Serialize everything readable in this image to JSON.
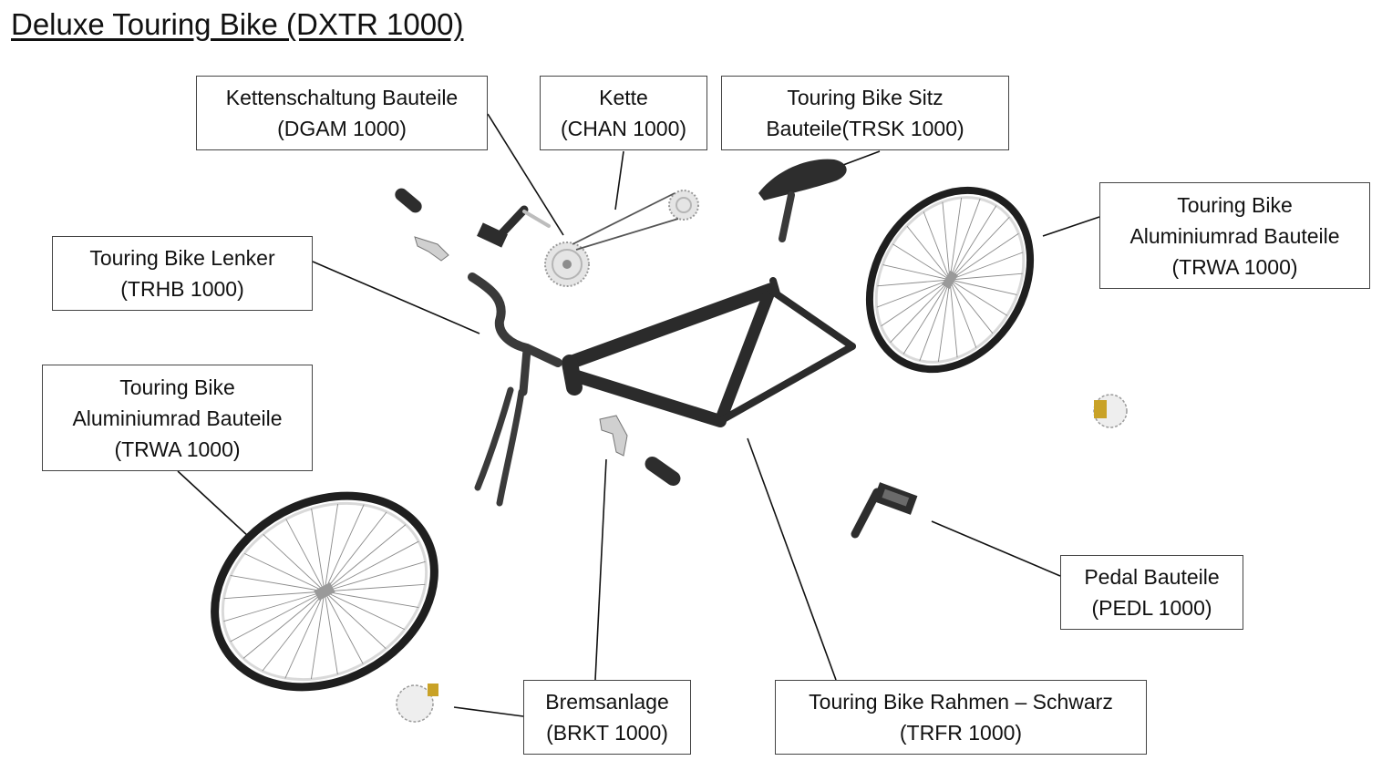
{
  "title": "Deluxe Touring Bike (DXTR 1000)",
  "labels": {
    "derailleur": [
      "Kettenschaltung Bauteile",
      "(DGAM 1000)"
    ],
    "chain": [
      "Kette",
      "(CHAN 1000)"
    ],
    "seat": [
      "Touring Bike Sitz",
      "Bauteile(TRSK 1000)"
    ],
    "wheel_rear": [
      "Touring Bike",
      "Aluminiumrad Bauteile",
      "(TRWA 1000)"
    ],
    "handlebar": [
      "Touring Bike Lenker",
      "(TRHB 1000)"
    ],
    "wheel_front": [
      "Touring Bike",
      "Aluminiumrad Bauteile",
      "(TRWA 1000)"
    ],
    "pedal": [
      "Pedal Bauteile",
      "(PEDL 1000)"
    ],
    "brakes": [
      "Bremsanlage",
      "(BRKT 1000)"
    ],
    "frame": [
      "Touring Bike Rahmen – Schwarz",
      "(TRFR 1000)"
    ]
  },
  "colors": {
    "frame": "#2b2b2b",
    "tire": "#1f1f1f",
    "rim": "#d9d9d9",
    "spoke": "#8a8a8a",
    "brass": "#c9a227",
    "leader": "#111111"
  }
}
